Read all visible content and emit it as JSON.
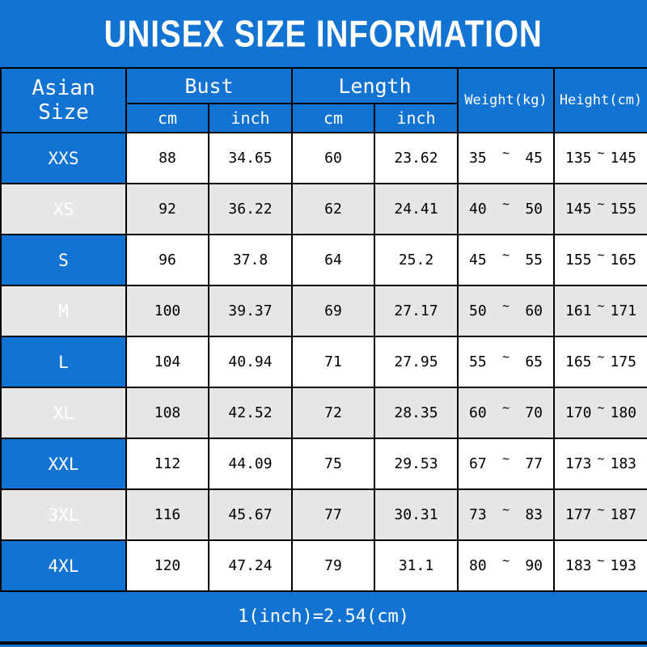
{
  "title": "UNISEX SIZE INFORMATION",
  "footer": "1(inch)=2.54(cm)",
  "tilde": "~",
  "colors": {
    "background_blue": "#1273d2",
    "row_alt_gray": "#e6e6e6",
    "row_white": "#ffffff",
    "border_black": "#000000",
    "header_text": "#ffffff",
    "data_text": "#000000"
  },
  "table": {
    "corner_header": "Asian Size",
    "groups": [
      {
        "label": "Bust",
        "sub": [
          "cm",
          "inch"
        ]
      },
      {
        "label": "Length",
        "sub": [
          "cm",
          "inch"
        ]
      }
    ],
    "single_headers": [
      "Weight(kg)",
      "Height(cm)"
    ],
    "rows": [
      {
        "size": "XXS",
        "bust_cm": "88",
        "bust_inch": "34.65",
        "length_cm": "60",
        "length_inch": "23.62",
        "weight_min": "35",
        "weight_max": "45",
        "height_min": "135",
        "height_max": "145"
      },
      {
        "size": "XS",
        "bust_cm": "92",
        "bust_inch": "36.22",
        "length_cm": "62",
        "length_inch": "24.41",
        "weight_min": "40",
        "weight_max": "50",
        "height_min": "145",
        "height_max": "155"
      },
      {
        "size": "S",
        "bust_cm": "96",
        "bust_inch": "37.8",
        "length_cm": "64",
        "length_inch": "25.2",
        "weight_min": "45",
        "weight_max": "55",
        "height_min": "155",
        "height_max": "165"
      },
      {
        "size": "M",
        "bust_cm": "100",
        "bust_inch": "39.37",
        "length_cm": "69",
        "length_inch": "27.17",
        "weight_min": "50",
        "weight_max": "60",
        "height_min": "161",
        "height_max": "171"
      },
      {
        "size": "L",
        "bust_cm": "104",
        "bust_inch": "40.94",
        "length_cm": "71",
        "length_inch": "27.95",
        "weight_min": "55",
        "weight_max": "65",
        "height_min": "165",
        "height_max": "175"
      },
      {
        "size": "XL",
        "bust_cm": "108",
        "bust_inch": "42.52",
        "length_cm": "72",
        "length_inch": "28.35",
        "weight_min": "60",
        "weight_max": "70",
        "height_min": "170",
        "height_max": "180"
      },
      {
        "size": "XXL",
        "bust_cm": "112",
        "bust_inch": "44.09",
        "length_cm": "75",
        "length_inch": "29.53",
        "weight_min": "67",
        "weight_max": "77",
        "height_min": "173",
        "height_max": "183"
      },
      {
        "size": "3XL",
        "bust_cm": "116",
        "bust_inch": "45.67",
        "length_cm": "77",
        "length_inch": "30.31",
        "weight_min": "73",
        "weight_max": "83",
        "height_min": "177",
        "height_max": "187"
      },
      {
        "size": "4XL",
        "bust_cm": "120",
        "bust_inch": "47.24",
        "length_cm": "79",
        "length_inch": "31.1",
        "weight_min": "80",
        "weight_max": "90",
        "height_min": "183",
        "height_max": "193"
      }
    ]
  },
  "chart_data": {
    "type": "table",
    "title": "UNISEX SIZE INFORMATION",
    "columns": [
      "Asian Size",
      "Bust (cm)",
      "Bust (inch)",
      "Length (cm)",
      "Length (inch)",
      "Weight (kg)",
      "Height (cm)"
    ],
    "rows": [
      [
        "XXS",
        88,
        34.65,
        60,
        23.62,
        "35~45",
        "135~145"
      ],
      [
        "XS",
        92,
        36.22,
        62,
        24.41,
        "40~50",
        "145~155"
      ],
      [
        "S",
        96,
        37.8,
        64,
        25.2,
        "45~55",
        "155~165"
      ],
      [
        "M",
        100,
        39.37,
        69,
        27.17,
        "50~60",
        "161~171"
      ],
      [
        "L",
        104,
        40.94,
        71,
        27.95,
        "55~65",
        "165~175"
      ],
      [
        "XL",
        108,
        42.52,
        72,
        28.35,
        "60~70",
        "170~180"
      ],
      [
        "XXL",
        112,
        44.09,
        75,
        29.53,
        "67~77",
        "173~183"
      ],
      [
        "3XL",
        116,
        45.67,
        77,
        30.31,
        "73~83",
        "177~187"
      ],
      [
        "4XL",
        120,
        47.24,
        79,
        31.1,
        "80~90",
        "183~193"
      ]
    ],
    "note": "1(inch)=2.54(cm)"
  }
}
